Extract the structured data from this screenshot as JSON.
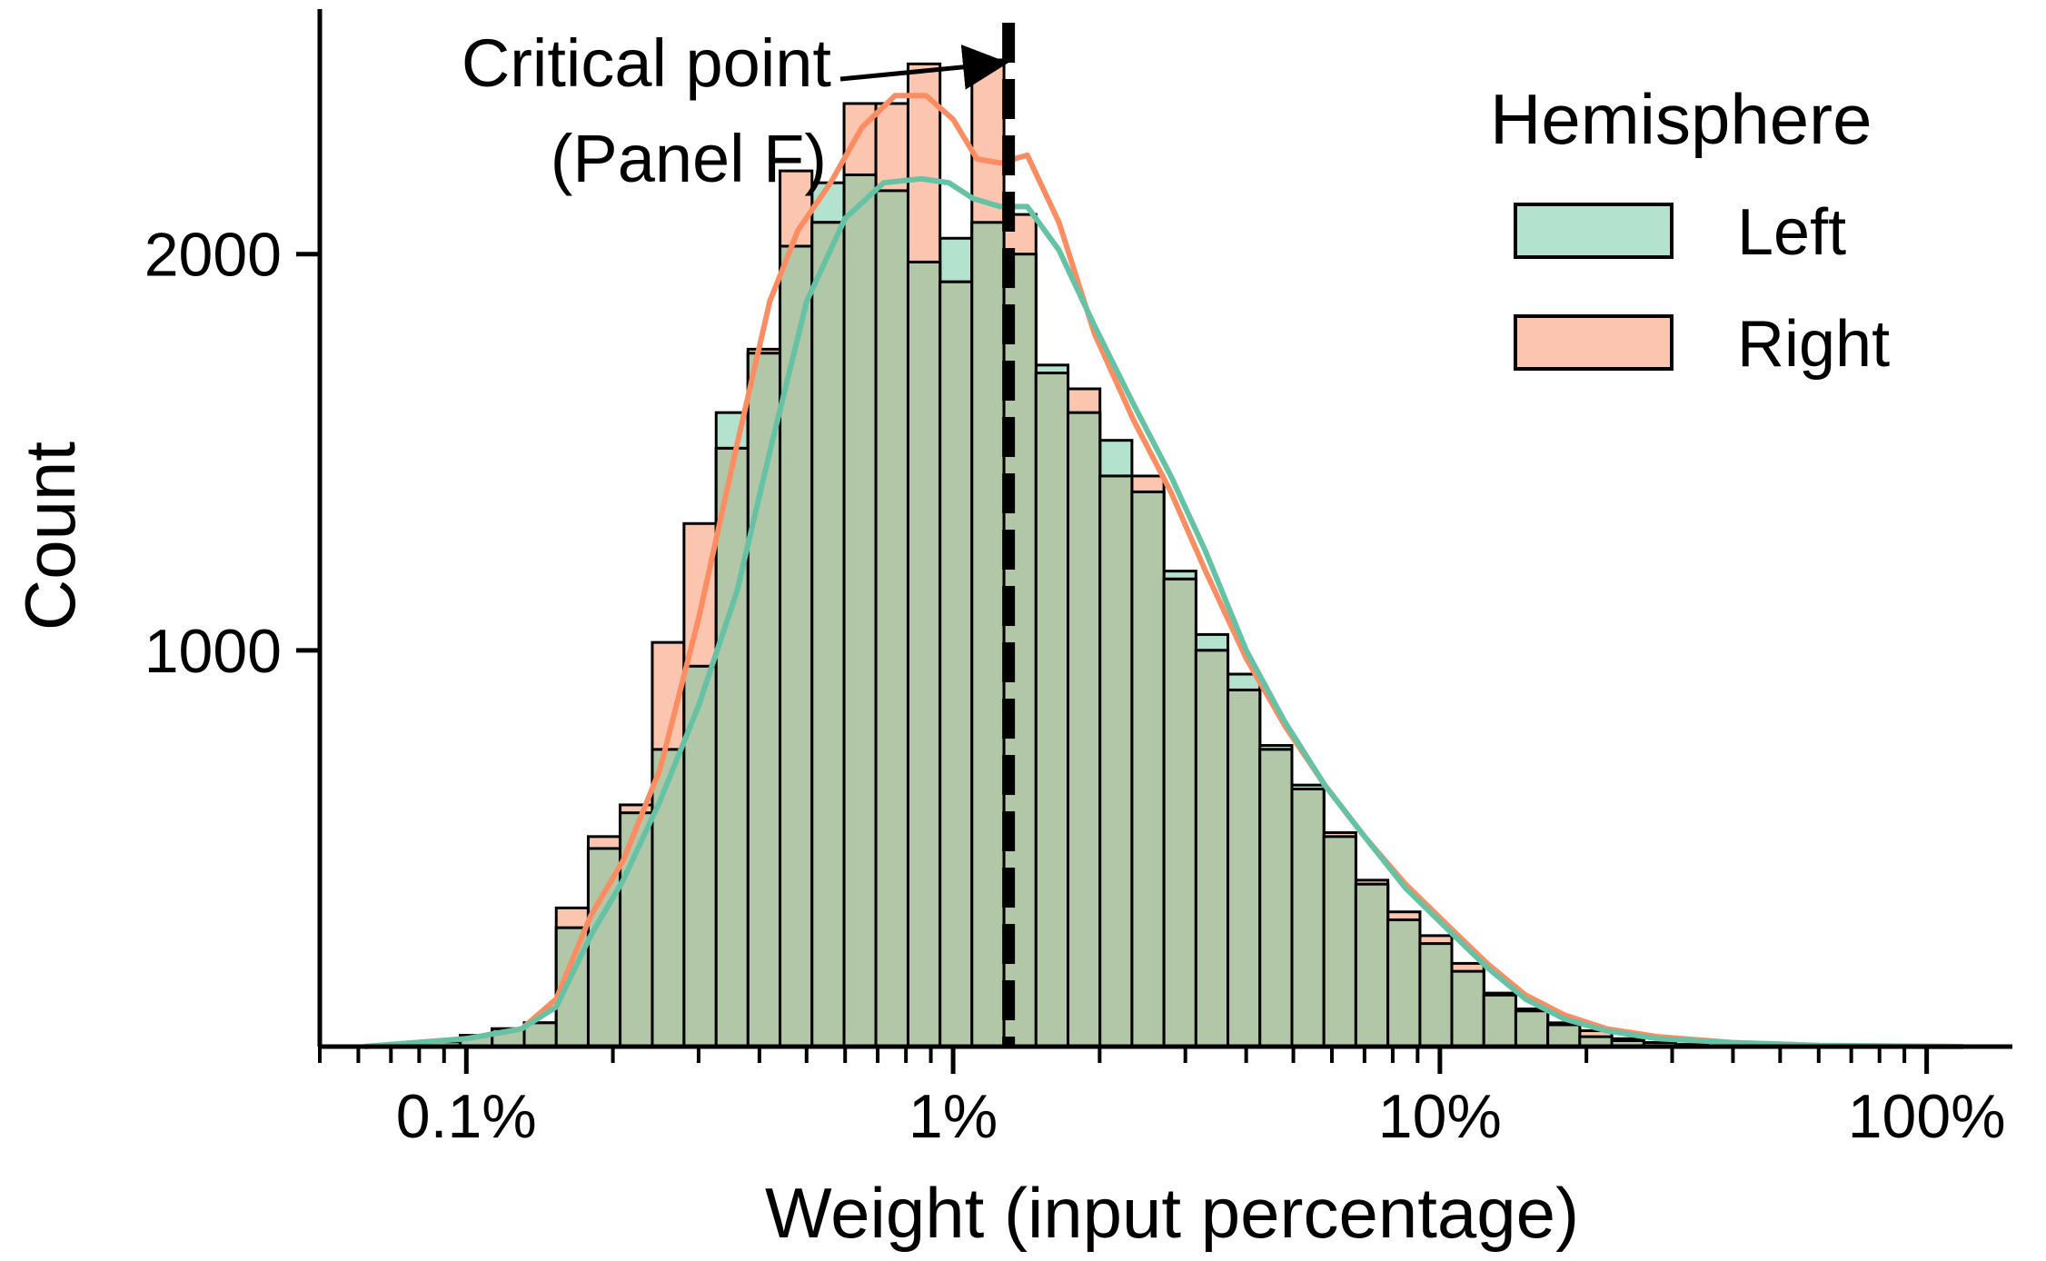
{
  "chart_data": {
    "type": "bar",
    "xlabel": "Weight (input percentage)",
    "ylabel": "Count",
    "x_scale": "log",
    "xlim": [
      0.05,
      150
    ],
    "ylim": [
      0,
      2600
    ],
    "x_ticks": [
      {
        "value": 0.1,
        "label": "0.1%"
      },
      {
        "value": 1,
        "label": "1%"
      },
      {
        "value": 10,
        "label": "10%"
      },
      {
        "value": 100,
        "label": "100%"
      }
    ],
    "y_ticks": [
      {
        "value": 1000,
        "label": "1000"
      },
      {
        "value": 2000,
        "label": "2000"
      }
    ],
    "bin_edges": [
      0.0617,
      0.0718,
      0.0835,
      0.0972,
      0.113,
      0.1315,
      0.153,
      0.178,
      0.207,
      0.241,
      0.28,
      0.326,
      0.379,
      0.441,
      0.513,
      0.597,
      0.694,
      0.808,
      0.94,
      1.093,
      1.272,
      1.48,
      1.722,
      2.003,
      2.33,
      2.711,
      3.154,
      3.669,
      4.268,
      4.966,
      5.777,
      6.72,
      7.82,
      9.1,
      10.58,
      12.31,
      14.32,
      16.66,
      19.38,
      22.55,
      26.24,
      30.52,
      35.51,
      41.31,
      48.06,
      55.91,
      65.04,
      75.67,
      88.03,
      102.4,
      119.1
    ],
    "series": [
      {
        "name": "Left",
        "color": "#66c2a5",
        "values": [
          0,
          0,
          12,
          28,
          45,
          60,
          300,
          500,
          590,
          750,
          960,
          1600,
          1750,
          2020,
          2180,
          2200,
          2160,
          1980,
          2040,
          2080,
          2000,
          1720,
          1600,
          1530,
          1400,
          1200,
          1040,
          940,
          760,
          660,
          530,
          410,
          320,
          260,
          190,
          130,
          90,
          55,
          25,
          15,
          10,
          5,
          0,
          0,
          0,
          0,
          0,
          0,
          0,
          0
        ],
        "kde": [
          [
            0.0617,
            0
          ],
          [
            0.1,
            20
          ],
          [
            0.13,
            45
          ],
          [
            0.153,
            100
          ],
          [
            0.18,
            280
          ],
          [
            0.21,
            420
          ],
          [
            0.25,
            620
          ],
          [
            0.3,
            860
          ],
          [
            0.36,
            1150
          ],
          [
            0.42,
            1500
          ],
          [
            0.5,
            1880
          ],
          [
            0.6,
            2090
          ],
          [
            0.72,
            2180
          ],
          [
            0.86,
            2190
          ],
          [
            0.98,
            2180
          ],
          [
            1.1,
            2140
          ],
          [
            1.25,
            2120
          ],
          [
            1.42,
            2120
          ],
          [
            1.65,
            2010
          ],
          [
            1.95,
            1820
          ],
          [
            2.35,
            1620
          ],
          [
            2.8,
            1440
          ],
          [
            3.3,
            1250
          ],
          [
            4.0,
            1000
          ],
          [
            4.8,
            820
          ],
          [
            5.8,
            660
          ],
          [
            7.0,
            530
          ],
          [
            8.5,
            400
          ],
          [
            10.3,
            300
          ],
          [
            12.5,
            200
          ],
          [
            15.0,
            120
          ],
          [
            18.0,
            70
          ],
          [
            22.0,
            40
          ],
          [
            28.0,
            20
          ],
          [
            40.0,
            10
          ],
          [
            60.0,
            3
          ],
          [
            119.1,
            0
          ]
        ]
      },
      {
        "name": "Right",
        "color": "#fc8d62",
        "values": [
          0,
          0,
          12,
          28,
          45,
          60,
          350,
          530,
          610,
          1020,
          1320,
          1510,
          1760,
          2210,
          2080,
          2380,
          2380,
          2480,
          1930,
          2490,
          2100,
          1700,
          1660,
          1440,
          1440,
          1180,
          1000,
          900,
          750,
          650,
          540,
          420,
          340,
          280,
          210,
          135,
          95,
          60,
          40,
          20,
          10,
          5,
          0,
          0,
          0,
          0,
          0,
          0,
          0,
          0
        ],
        "kde": [
          [
            0.0617,
            0
          ],
          [
            0.1,
            20
          ],
          [
            0.13,
            45
          ],
          [
            0.153,
            120
          ],
          [
            0.18,
            330
          ],
          [
            0.21,
            470
          ],
          [
            0.25,
            700
          ],
          [
            0.3,
            1080
          ],
          [
            0.36,
            1520
          ],
          [
            0.42,
            1880
          ],
          [
            0.48,
            2060
          ],
          [
            0.56,
            2180
          ],
          [
            0.65,
            2320
          ],
          [
            0.76,
            2400
          ],
          [
            0.88,
            2400
          ],
          [
            1.0,
            2340
          ],
          [
            1.12,
            2240
          ],
          [
            1.25,
            2230
          ],
          [
            1.42,
            2250
          ],
          [
            1.65,
            2080
          ],
          [
            1.95,
            1800
          ],
          [
            2.35,
            1580
          ],
          [
            2.8,
            1400
          ],
          [
            3.3,
            1200
          ],
          [
            4.0,
            980
          ],
          [
            4.8,
            810
          ],
          [
            5.8,
            660
          ],
          [
            7.0,
            530
          ],
          [
            8.5,
            410
          ],
          [
            10.3,
            310
          ],
          [
            12.5,
            210
          ],
          [
            15.0,
            130
          ],
          [
            18.0,
            80
          ],
          [
            22.0,
            45
          ],
          [
            28.0,
            25
          ],
          [
            40.0,
            10
          ],
          [
            60.0,
            3
          ],
          [
            119.1,
            0
          ]
        ]
      }
    ],
    "critical_point": {
      "x": 1.3,
      "label_line1": "Critical point",
      "label_line2": "(Panel F)"
    },
    "legend": {
      "title": "Hemisphere",
      "position": "top-right"
    }
  }
}
